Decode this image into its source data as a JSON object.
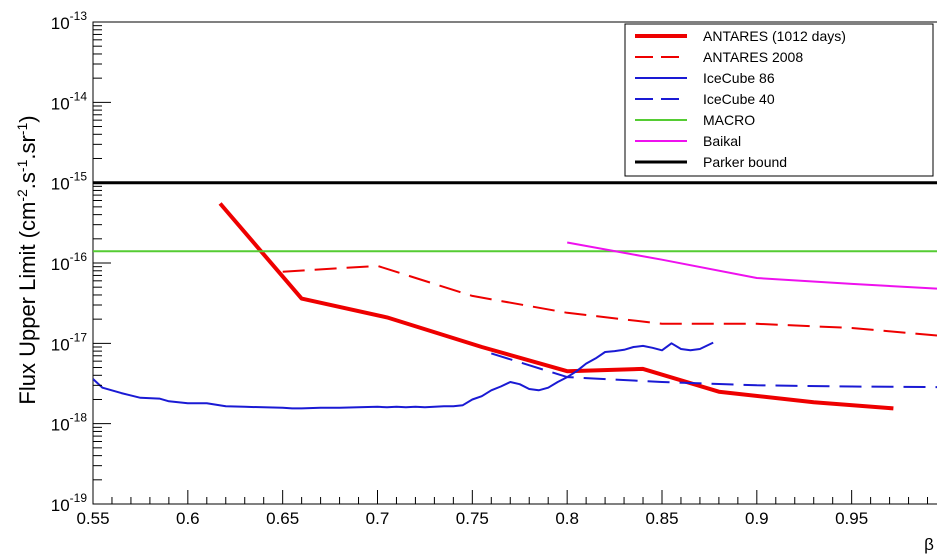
{
  "chart_data": {
    "type": "line",
    "title": "",
    "xlabel": "β",
    "ylabel": "Flux Upper Limit (cm⁻².s⁻¹.sr⁻¹)",
    "ylabel_parts": {
      "base": "Flux Upper Limit (cm",
      "e1": "-2",
      "mid1": ".s",
      "e2": "-1",
      "mid2": ".sr",
      "e3": "-1",
      "end": ")"
    },
    "xlim": [
      0.55,
      0.995
    ],
    "ylim": [
      1e-19,
      1e-13
    ],
    "yscale": "log",
    "x_ticks": [
      "0.55",
      "0.6",
      "0.65",
      "0.7",
      "0.75",
      "0.8",
      "0.85",
      "0.9",
      "0.95"
    ],
    "y_ticks": [
      {
        "base": "10",
        "exp": "-13",
        "value": 1e-13
      },
      {
        "base": "10",
        "exp": "-14",
        "value": 1e-14
      },
      {
        "base": "10",
        "exp": "-15",
        "value": 1e-15
      },
      {
        "base": "10",
        "exp": "-16",
        "value": 1e-16
      },
      {
        "base": "10",
        "exp": "-17",
        "value": 1e-17
      },
      {
        "base": "10",
        "exp": "-18",
        "value": 1e-18
      },
      {
        "base": "10",
        "exp": "-19",
        "value": 1e-19
      }
    ],
    "legend_position": "top-right",
    "series": [
      {
        "name": "ANTARES (1012 days)",
        "color": "#ee0000",
        "width": 4,
        "dash": "",
        "x": [
          0.617,
          0.66,
          0.705,
          0.755,
          0.8,
          0.84,
          0.88,
          0.93,
          0.972
        ],
        "y": [
          5.5e-16,
          3.6e-17,
          2.1e-17,
          9e-18,
          4.5e-18,
          4.8e-18,
          2.5e-18,
          1.85e-18,
          1.55e-18
        ]
      },
      {
        "name": "ANTARES 2008",
        "color": "#ee0000",
        "width": 2,
        "dash": "22,10",
        "x": [
          0.65,
          0.7,
          0.75,
          0.8,
          0.85,
          0.9,
          0.95,
          0.995
        ],
        "y": [
          7.8e-17,
          9.2e-17,
          3.9e-17,
          2.4e-17,
          1.75e-17,
          1.75e-17,
          1.55e-17,
          1.25e-17
        ]
      },
      {
        "name": "IceCube 86",
        "color": "#1a1ad4",
        "width": 2,
        "dash": "",
        "x": [
          0.55,
          0.555,
          0.565,
          0.575,
          0.585,
          0.59,
          0.6,
          0.61,
          0.62,
          0.63,
          0.64,
          0.65,
          0.655,
          0.66,
          0.67,
          0.68,
          0.69,
          0.7,
          0.705,
          0.71,
          0.715,
          0.72,
          0.725,
          0.73,
          0.735,
          0.74,
          0.745,
          0.75,
          0.755,
          0.76,
          0.765,
          0.77,
          0.775,
          0.78,
          0.785,
          0.79,
          0.795,
          0.8,
          0.805,
          0.81,
          0.815,
          0.82,
          0.825,
          0.83,
          0.835,
          0.84,
          0.845,
          0.85,
          0.855,
          0.86,
          0.865,
          0.87,
          0.877
        ],
        "y": [
          3.6e-18,
          2.8e-18,
          2.4e-18,
          2.1e-18,
          2.05e-18,
          1.9e-18,
          1.8e-18,
          1.8e-18,
          1.65e-18,
          1.62e-18,
          1.6e-18,
          1.58e-18,
          1.55e-18,
          1.55e-18,
          1.58e-18,
          1.58e-18,
          1.6e-18,
          1.62e-18,
          1.6e-18,
          1.62e-18,
          1.6e-18,
          1.62e-18,
          1.6e-18,
          1.62e-18,
          1.65e-18,
          1.65e-18,
          1.7e-18,
          2e-18,
          2.2e-18,
          2.6e-18,
          2.9e-18,
          3.3e-18,
          3.1e-18,
          2.7e-18,
          2.6e-18,
          2.8e-18,
          3.3e-18,
          3.8e-18,
          4.5e-18,
          5.6e-18,
          6.5e-18,
          7.8e-18,
          8e-18,
          8.3e-18,
          9e-18,
          9.3e-18,
          8.8e-18,
          8.2e-18,
          1e-17,
          8.5e-18,
          8.2e-18,
          8.5e-18,
          1.02e-17
        ]
      },
      {
        "name": "IceCube 40",
        "color": "#1a1ad4",
        "width": 2,
        "dash": "22,10",
        "x": [
          0.76,
          0.8,
          0.85,
          0.9,
          0.95,
          0.995
        ],
        "y": [
          7.5e-18,
          3.8e-18,
          3.3e-18,
          3e-18,
          2.9e-18,
          2.85e-18
        ]
      },
      {
        "name": "MACRO",
        "color": "#55cc33",
        "width": 2,
        "dash": "",
        "x": [
          0.55,
          0.995
        ],
        "y": [
          1.4e-16,
          1.4e-16
        ]
      },
      {
        "name": "Baikal",
        "color": "#ee11ee",
        "width": 2,
        "dash": "",
        "x": [
          0.8,
          0.85,
          0.9,
          0.95,
          0.995
        ],
        "y": [
          1.8e-16,
          1.1e-16,
          6.5e-17,
          5.5e-17,
          4.8e-17
        ]
      },
      {
        "name": "Parker bound",
        "color": "#000000",
        "width": 3,
        "dash": "",
        "x": [
          0.55,
          0.995
        ],
        "y": [
          1e-15,
          1e-15
        ]
      }
    ]
  }
}
